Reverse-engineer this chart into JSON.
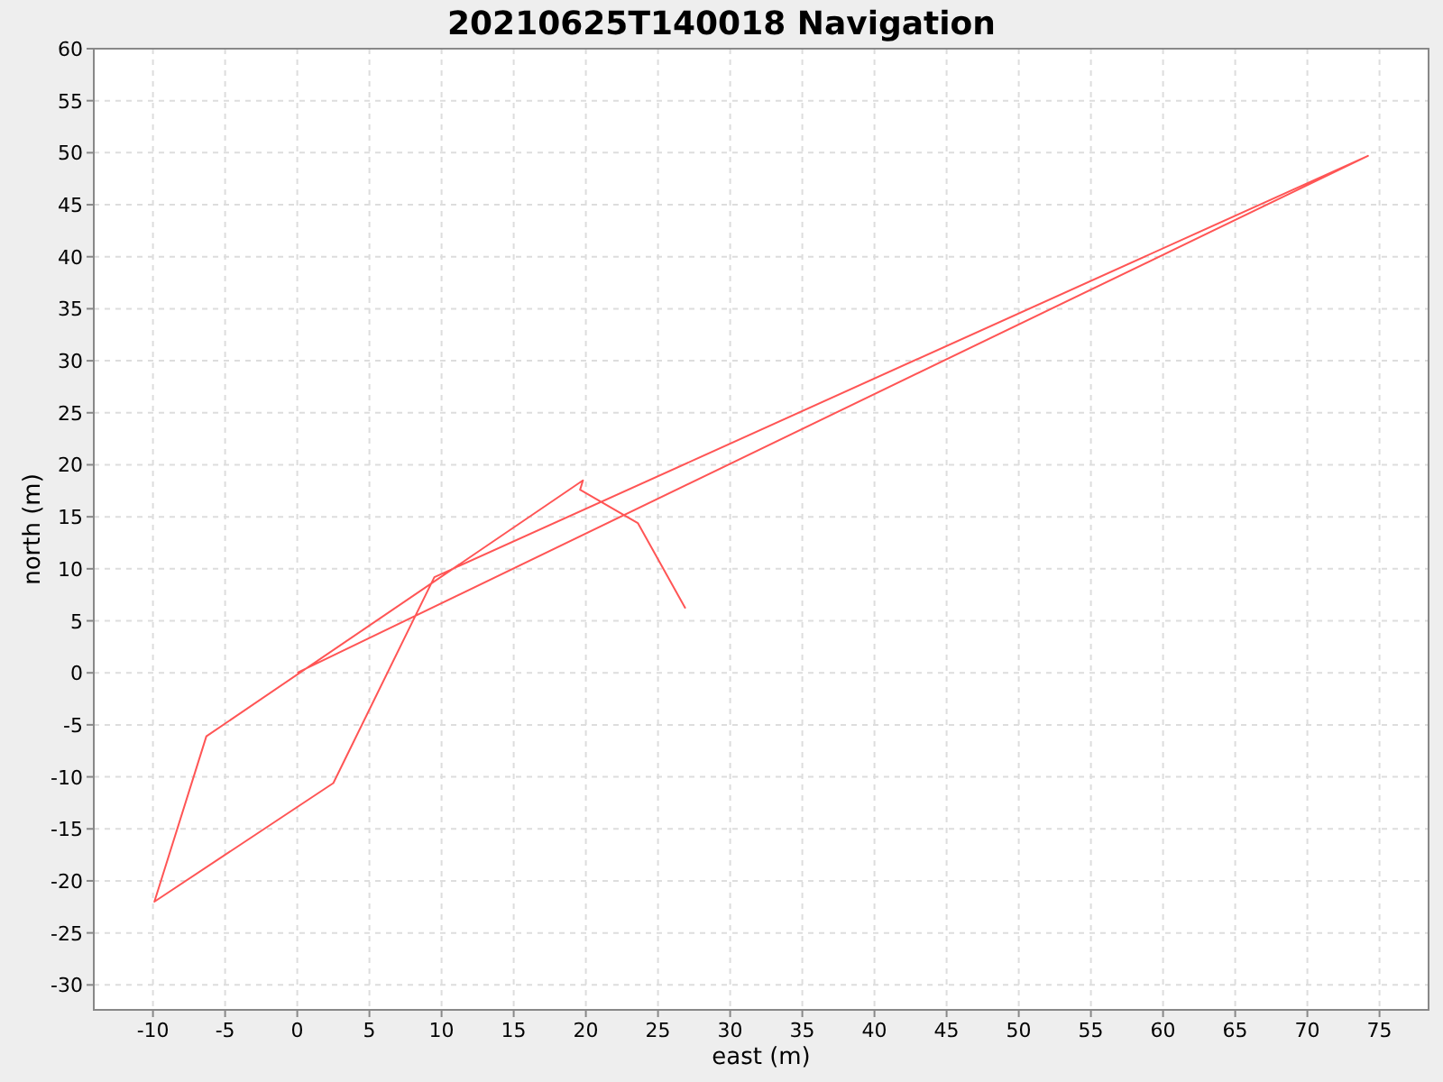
{
  "chart_data": {
    "type": "line",
    "title": "20210625T140018 Navigation",
    "xlabel": "east (m)",
    "ylabel": "north (m)",
    "x": [
      0,
      74.2,
      9.5,
      2.5,
      -9.9,
      -6.3,
      19.8,
      19.6,
      23.6,
      26.9
    ],
    "values": [
      0,
      49.7,
      9.2,
      -10.6,
      -22,
      -6.1,
      18.5,
      17.6,
      14.4,
      6.2
    ],
    "color": "#ff5555",
    "xlim": [
      -14.1,
      78.4
    ],
    "ylim": [
      -32.4,
      60
    ],
    "xticks": [
      -10,
      -5,
      0,
      5,
      10,
      15,
      20,
      25,
      30,
      35,
      40,
      45,
      50,
      55,
      60,
      65,
      70,
      75
    ],
    "yticks": [
      -30,
      -25,
      -20,
      -15,
      -10,
      -5,
      0,
      5,
      10,
      15,
      20,
      25,
      30,
      35,
      40,
      45,
      50,
      55,
      60
    ],
    "grid": true,
    "marker": "none",
    "line_style": "solid"
  }
}
